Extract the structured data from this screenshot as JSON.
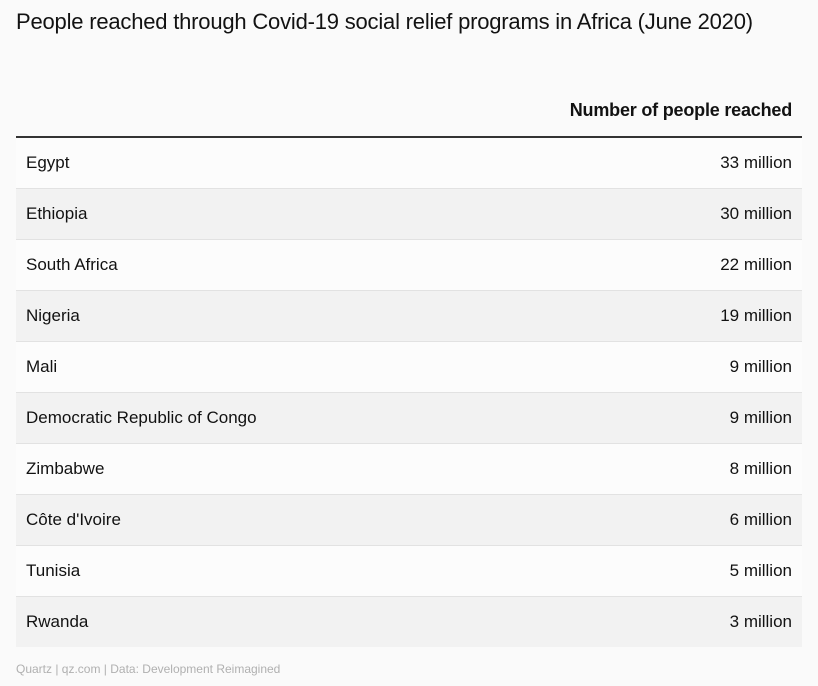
{
  "title": "People reached through Covid-19 social relief programs in Africa (June 2020)",
  "footer": "Quartz | qz.com | Data: Development Reimagined",
  "chart_data": {
    "type": "table",
    "columns": [
      "",
      "Number of people reached"
    ],
    "rows": [
      {
        "country": "Egypt",
        "value": "33 million"
      },
      {
        "country": "Ethiopia",
        "value": "30 million"
      },
      {
        "country": "South Africa",
        "value": "22 million"
      },
      {
        "country": "Nigeria",
        "value": "19 million"
      },
      {
        "country": "Mali",
        "value": "9 million"
      },
      {
        "country": "Democratic Republic of Congo",
        "value": "9 million"
      },
      {
        "country": "Zimbabwe",
        "value": "8 million"
      },
      {
        "country": "Côte d'Ivoire",
        "value": "6 million"
      },
      {
        "country": "Tunisia",
        "value": "5 million"
      },
      {
        "country": "Rwanda",
        "value": "3 million"
      }
    ]
  }
}
